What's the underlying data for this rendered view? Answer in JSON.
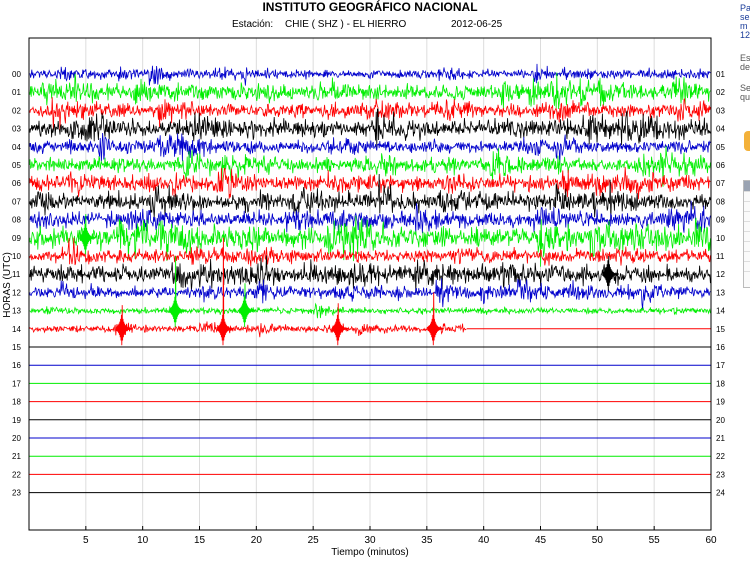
{
  "header": {
    "title": "INSTITUTO GEOGRÁFICO NACIONAL",
    "station_label": "Estación:",
    "station": "CHIE ( SHZ ) - EL HIERRO",
    "date": "2012-06-25"
  },
  "side_panel": {
    "text_lines_1": [
      "Pa",
      "se",
      "m",
      "12"
    ],
    "text_lines_2": [
      "Es",
      "de"
    ],
    "text_lines_3": [
      "Se",
      "qu"
    ]
  },
  "chart_data": {
    "type": "seismogram",
    "title": "INSTITUTO GEOGRÁFICO NACIONAL",
    "xlabel": "Tiempo (minutos)",
    "ylabel": "HORAS (UTC)",
    "xlim": [
      0,
      60
    ],
    "x_ticks": [
      5,
      10,
      15,
      20,
      25,
      30,
      35,
      40,
      45,
      50,
      55,
      60
    ],
    "left_labels": [
      "00",
      "01",
      "02",
      "03",
      "04",
      "05",
      "06",
      "07",
      "08",
      "09",
      "10",
      "11",
      "12",
      "13",
      "14",
      "15",
      "16",
      "17",
      "18",
      "19",
      "20",
      "21",
      "22",
      "23"
    ],
    "right_labels": [
      "01",
      "02",
      "03",
      "04",
      "05",
      "06",
      "07",
      "08",
      "09",
      "10",
      "11",
      "12",
      "13",
      "14",
      "15",
      "16",
      "17",
      "18",
      "19",
      "20",
      "21",
      "22",
      "23",
      "24"
    ],
    "color_cycle": [
      "#0000cc",
      "#00ee00",
      "#ff0000",
      "#000000"
    ],
    "trace_amplitude": [
      0.35,
      0.55,
      0.55,
      0.65,
      0.5,
      0.55,
      0.6,
      0.65,
      0.6,
      0.85,
      0.5,
      0.7,
      0.45,
      0.25,
      0.25,
      0,
      0,
      0,
      0,
      0,
      0,
      0,
      0,
      0
    ],
    "recording_end_minute": 38.5,
    "events": [
      {
        "hour": 14,
        "minute": 8.2,
        "amplitude": 1.3
      },
      {
        "hour": 13,
        "minute": 12.9,
        "amplitude": 3.0
      },
      {
        "hour": 14,
        "minute": 17.1,
        "amplitude": 5.0
      },
      {
        "hour": 13,
        "minute": 19.0,
        "amplitude": 1.5
      },
      {
        "hour": 14,
        "minute": 27.2,
        "amplitude": 1.4
      },
      {
        "hour": 14,
        "minute": 35.6,
        "amplitude": 2.0
      },
      {
        "hour": 9,
        "minute": 5.0,
        "amplitude": 1.3
      },
      {
        "hour": 11,
        "minute": 51.0,
        "amplitude": 1.0
      }
    ]
  }
}
